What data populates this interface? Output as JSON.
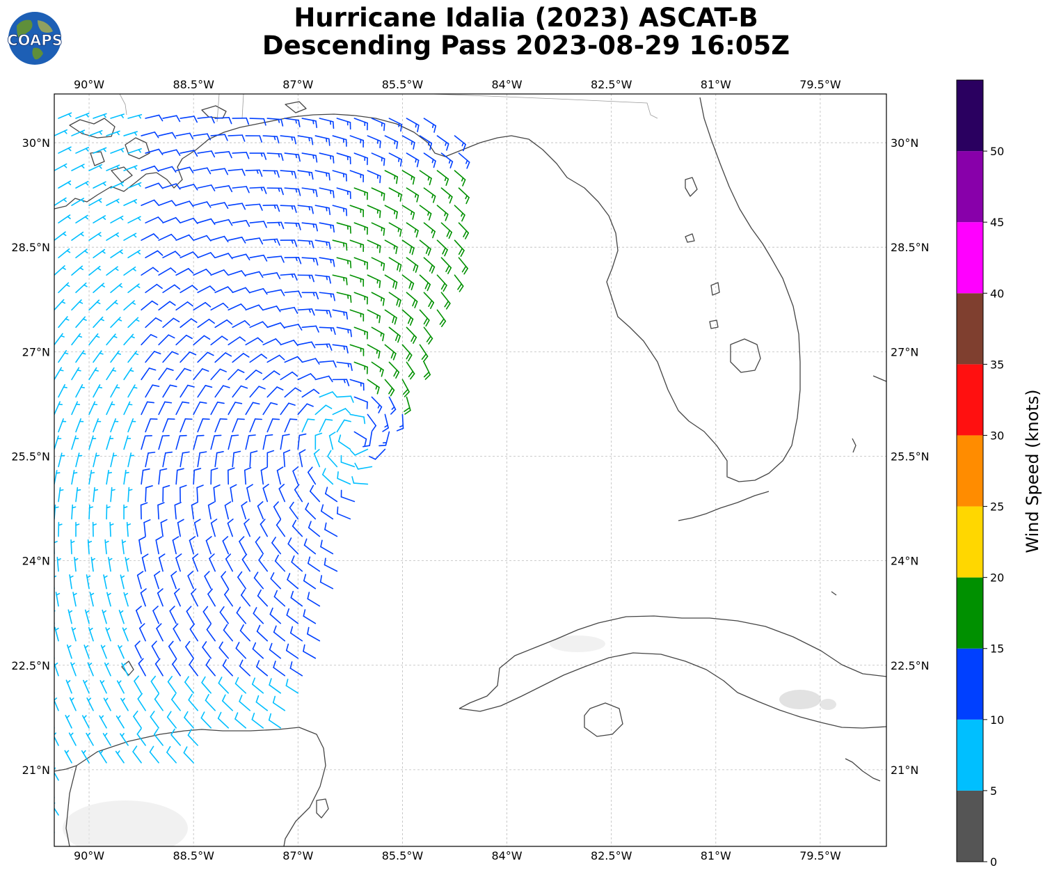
{
  "title": {
    "line1": "Hurricane Idalia (2023) ASCAT-B",
    "line2": "Descending Pass 2023-08-29 16:05Z"
  },
  "logo": {
    "text": "COAPS",
    "icon": "globe-icon"
  },
  "map": {
    "lon_range": [
      -90.5,
      -78.55
    ],
    "lat_range": [
      19.9,
      30.7
    ],
    "lon_ticks": [
      {
        "value": -90.0,
        "label": "90°W"
      },
      {
        "value": -88.5,
        "label": "88.5°W"
      },
      {
        "value": -87.0,
        "label": "87°W"
      },
      {
        "value": -85.5,
        "label": "85.5°W"
      },
      {
        "value": -84.0,
        "label": "84°W"
      },
      {
        "value": -82.5,
        "label": "82.5°W"
      },
      {
        "value": -81.0,
        "label": "81°W"
      },
      {
        "value": -79.5,
        "label": "79.5°W"
      }
    ],
    "lat_ticks": [
      {
        "value": 30.0,
        "label": "30°N"
      },
      {
        "value": 28.5,
        "label": "28.5°N"
      },
      {
        "value": 27.0,
        "label": "27°N"
      },
      {
        "value": 25.5,
        "label": "25.5°N"
      },
      {
        "value": 24.0,
        "label": "24°N"
      },
      {
        "value": 22.5,
        "label": "22.5°N"
      },
      {
        "value": 21.0,
        "label": "21°N"
      }
    ],
    "gridlines": true,
    "storm_center": {
      "lon": -86.2,
      "lat": 25.8
    }
  },
  "colorbar": {
    "label": "Wind Speed (knots)",
    "ticks": [
      0,
      5,
      10,
      15,
      20,
      25,
      30,
      35,
      40,
      45,
      50
    ],
    "bins": [
      {
        "min": 0,
        "max": 5,
        "color": "#555555"
      },
      {
        "min": 5,
        "max": 10,
        "color": "#00bfff"
      },
      {
        "min": 10,
        "max": 15,
        "color": "#0040ff"
      },
      {
        "min": 15,
        "max": 20,
        "color": "#009000"
      },
      {
        "min": 20,
        "max": 25,
        "color": "#ffd700"
      },
      {
        "min": 25,
        "max": 30,
        "color": "#ff8c00"
      },
      {
        "min": 30,
        "max": 35,
        "color": "#ff1010"
      },
      {
        "min": 35,
        "max": 40,
        "color": "#7f3f2f"
      },
      {
        "min": 40,
        "max": 45,
        "color": "#ff00ff"
      },
      {
        "min": 45,
        "max": 50,
        "color": "#8800aa"
      },
      {
        "min": 50,
        "max": 55,
        "color": "#2a0060"
      }
    ]
  }
}
